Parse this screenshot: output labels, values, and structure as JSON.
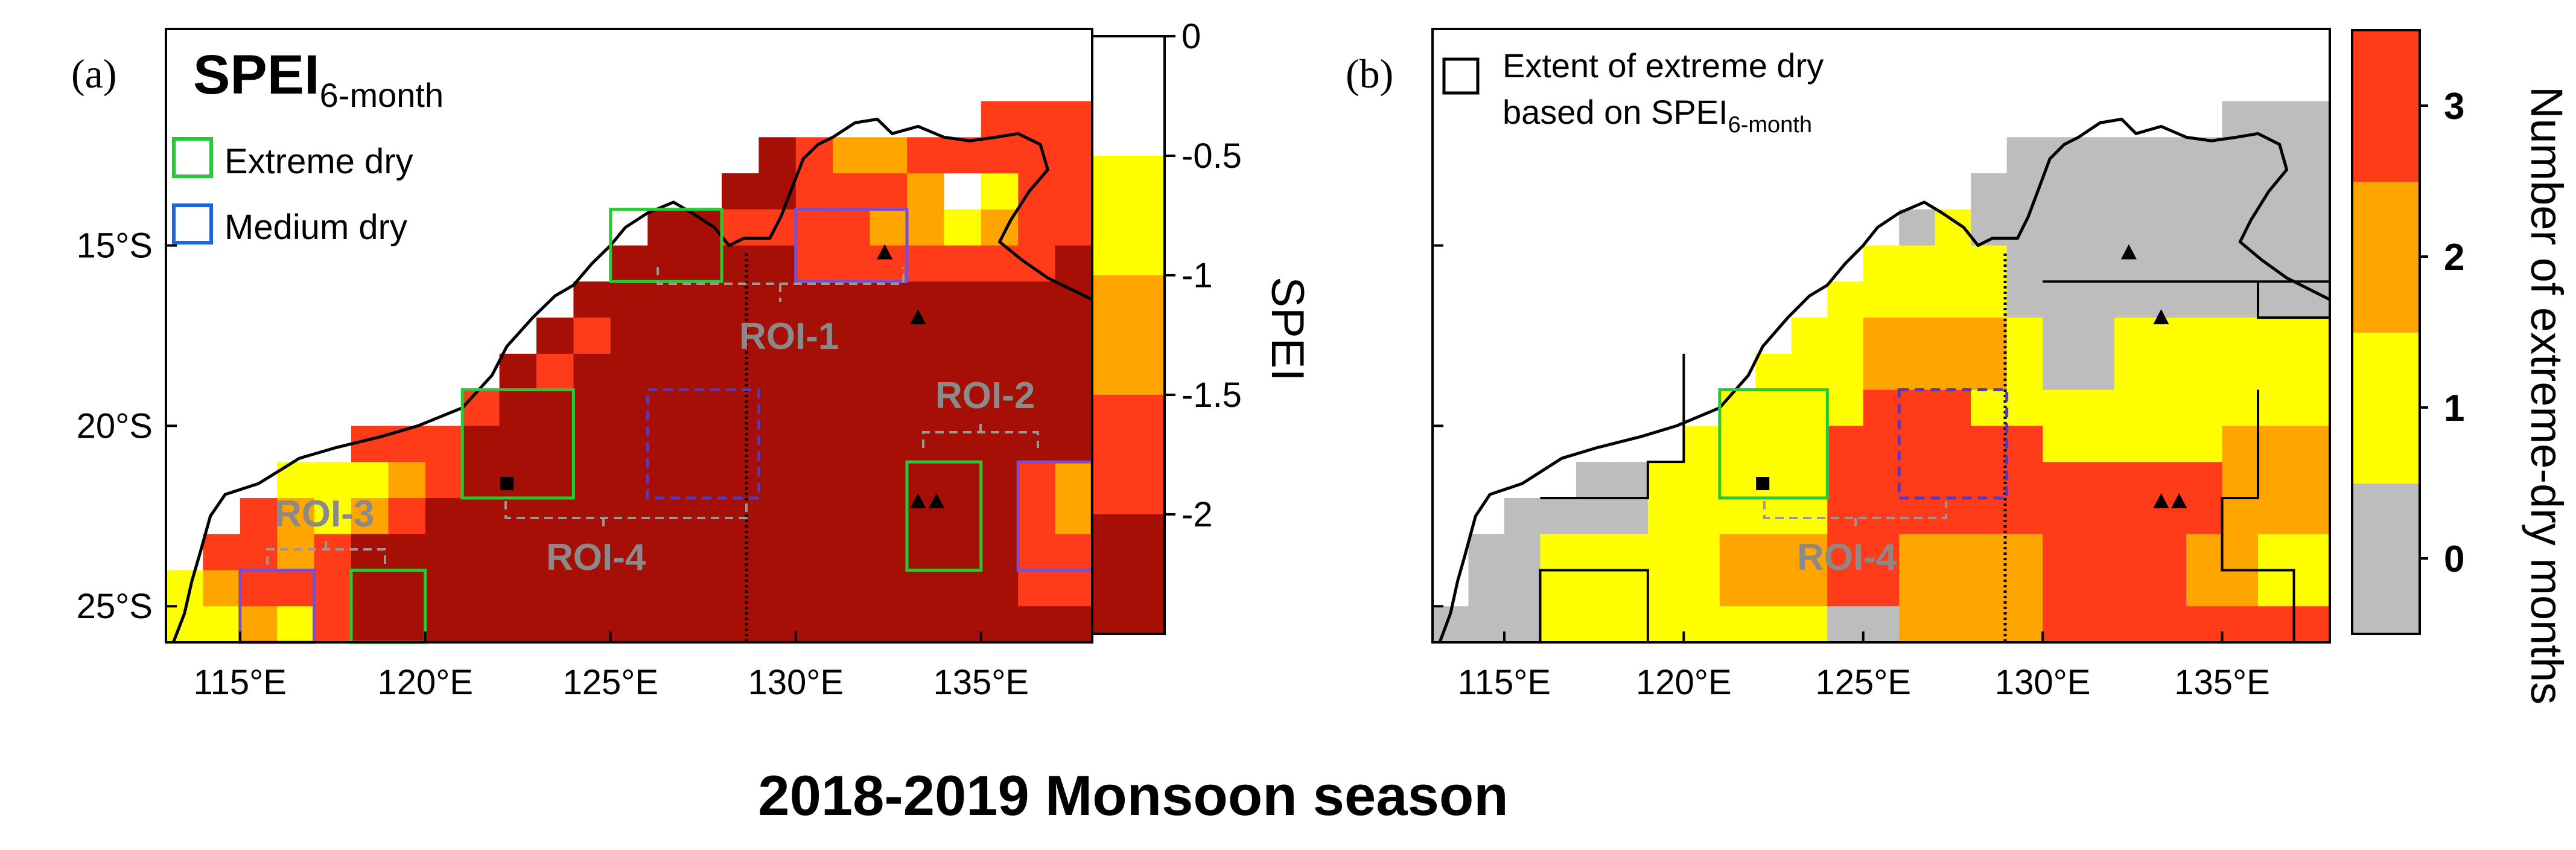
{
  "figure": {
    "title": "2018-2019 Monsoon season",
    "colors": {
      "ocean": "#ffffff",
      "coast": "#000000",
      "roi_extreme": "#22cc33",
      "roi_medium": "#1a66dd",
      "roi_dashed": "#4a3dcc",
      "bracket": "#999999"
    }
  },
  "chart_data": [
    {
      "type": "heatmap",
      "panel_label": "(a)",
      "title_main": "SPEI",
      "title_sub": "6-month",
      "legend": [
        {
          "label": "Extreme dry",
          "color": "#22cc33"
        },
        {
          "label": "Medium dry",
          "color": "#1a66dd"
        }
      ],
      "x_range": [
        113,
        138
      ],
      "y_range": [
        -26,
        -9
      ],
      "x_ticks": [
        "115°E",
        "120°E",
        "125°E",
        "130°E",
        "135°E"
      ],
      "x_tick_values": [
        115,
        120,
        125,
        130,
        135
      ],
      "y_ticks": [
        "15°S",
        "20°S",
        "25°S"
      ],
      "y_tick_values": [
        -15,
        -20,
        -25
      ],
      "colorbar": {
        "label": "SPEI",
        "ticks": [
          "0",
          "-0.5",
          "-1",
          "-1.5",
          "-2"
        ],
        "tick_values": [
          0,
          -0.5,
          -1,
          -1.5,
          -2
        ],
        "bins": [
          {
            "from": 0,
            "to": -0.5,
            "color": "#ffffff"
          },
          {
            "from": -0.5,
            "to": -1,
            "color": "#ffff00"
          },
          {
            "from": -1,
            "to": -1.5,
            "color": "#ffa500"
          },
          {
            "from": -1.5,
            "to": -2,
            "color": "#ff3b1a"
          },
          {
            "from": -2,
            "to": -2.5,
            "color": "#a50f05"
          }
        ]
      },
      "roi_labels": [
        "ROI-1",
        "ROI-2",
        "ROI-3",
        "ROI-4"
      ],
      "rois": [
        {
          "name": "ROI-1",
          "kind": "extreme",
          "lon": [
            125,
            128
          ],
          "lat": [
            -16,
            -14
          ]
        },
        {
          "name": "ROI-1",
          "kind": "medium",
          "lon": [
            130,
            133
          ],
          "lat": [
            -16,
            -14
          ]
        },
        {
          "name": "ROI-2",
          "kind": "extreme",
          "lon": [
            133,
            135
          ],
          "lat": [
            -24,
            -21
          ]
        },
        {
          "name": "ROI-2",
          "kind": "medium",
          "lon": [
            136,
            138
          ],
          "lat": [
            -24,
            -21
          ]
        },
        {
          "name": "ROI-3",
          "kind": "medium",
          "lon": [
            115,
            117
          ],
          "lat": [
            -26,
            -24
          ]
        },
        {
          "name": "ROI-3",
          "kind": "extreme",
          "lon": [
            118,
            120
          ],
          "lat": [
            -26,
            -24
          ]
        },
        {
          "name": "ROI-4",
          "kind": "extreme",
          "lon": [
            121,
            124
          ],
          "lat": [
            -22,
            -19
          ]
        },
        {
          "name": "ROI-4",
          "kind": "dashed",
          "lon": [
            126,
            129
          ],
          "lat": [
            -22,
            -19
          ]
        }
      ],
      "sites": [
        {
          "shape": "square",
          "lon": 122.2,
          "lat": -21.6
        },
        {
          "shape": "triangle",
          "lon": 132.4,
          "lat": -15.2
        },
        {
          "shape": "triangle",
          "lon": 133.3,
          "lat": -17.0
        },
        {
          "shape": "triangle",
          "lon": 133.3,
          "lat": -22.1
        },
        {
          "shape": "triangle",
          "lon": 133.8,
          "lat": -22.1
        }
      ]
    },
    {
      "type": "heatmap",
      "panel_label": "(b)",
      "legend_line1": "Extent of extreme dry",
      "legend_line2_main": "based on SPEI",
      "legend_line2_sub": "6-month",
      "x_range": [
        113,
        138
      ],
      "y_range": [
        -26,
        -9
      ],
      "x_ticks": [
        "115°E",
        "120°E",
        "125°E",
        "130°E",
        "135°E"
      ],
      "x_tick_values": [
        115,
        120,
        125,
        130,
        135
      ],
      "colorbar": {
        "label": "Number of extreme-dry months",
        "ticks": [
          "0",
          "1",
          "2",
          "3"
        ],
        "tick_values": [
          0,
          1,
          2,
          3
        ],
        "bins": [
          {
            "value": 0,
            "color": "#bdbdbd"
          },
          {
            "value": 1,
            "color": "#ffff00"
          },
          {
            "value": 2,
            "color": "#ffa500"
          },
          {
            "value": 3,
            "color": "#ff3b1a"
          }
        ]
      },
      "roi_labels": [
        "ROI-4"
      ],
      "rois": [
        {
          "name": "ROI-4",
          "kind": "extreme",
          "lon": [
            121,
            124
          ],
          "lat": [
            -22,
            -19
          ]
        },
        {
          "name": "ROI-4",
          "kind": "dashed",
          "lon": [
            126,
            129
          ],
          "lat": [
            -22,
            -19
          ]
        }
      ],
      "sites": [
        {
          "shape": "square",
          "lon": 122.2,
          "lat": -21.6
        },
        {
          "shape": "triangle",
          "lon": 132.4,
          "lat": -15.2
        },
        {
          "shape": "triangle",
          "lon": 133.3,
          "lat": -17.0
        },
        {
          "shape": "triangle",
          "lon": 133.3,
          "lat": -22.1
        },
        {
          "shape": "triangle",
          "lon": 133.8,
          "lat": -22.1
        }
      ]
    }
  ]
}
